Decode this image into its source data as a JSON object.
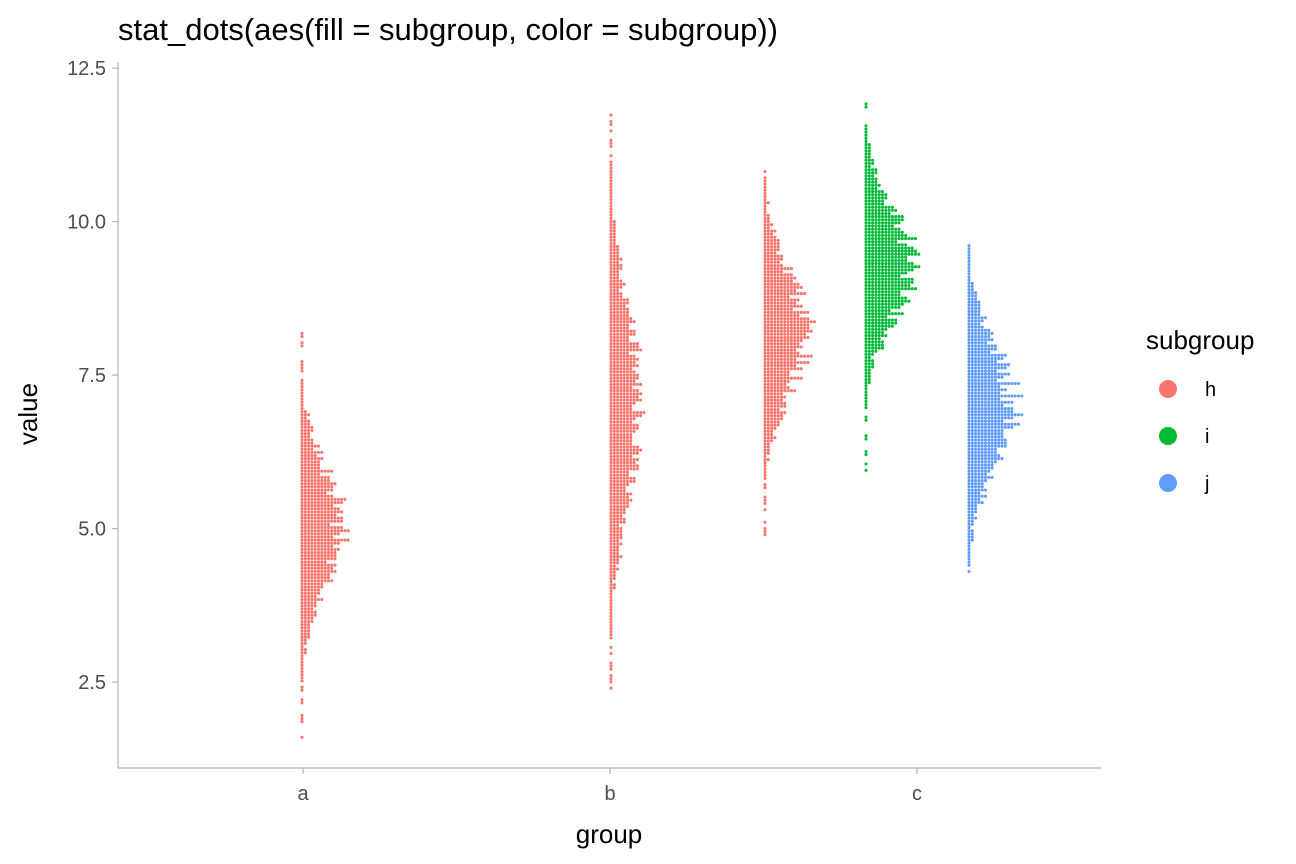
{
  "chart_data": {
    "type": "dotplot",
    "title": "stat_dots(aes(fill = subgroup, color = subgroup))",
    "xlabel": "group",
    "ylabel": "value",
    "ylim": [
      1.1,
      12.6
    ],
    "y_ticks": [
      "2.5",
      "5.0",
      "7.5",
      "10.0",
      "12.5"
    ],
    "y_tick_values": [
      2.5,
      5.0,
      7.5,
      10.0,
      12.5
    ],
    "categories": [
      "a",
      "b",
      "c"
    ],
    "grid": false,
    "legend": {
      "title": "subgroup",
      "position": "right",
      "entries": [
        {
          "label": "h",
          "color": "#F8766D"
        },
        {
          "label": "i",
          "color": "#00BA38"
        },
        {
          "label": "j",
          "color": "#619CFF"
        }
      ]
    },
    "series": [
      {
        "group": "a",
        "subgroup": "h",
        "color": "#F8766D",
        "center": 5.0,
        "sd": 1.0,
        "min": 1.6,
        "max": 8.2,
        "peak_dots": 12
      },
      {
        "group": "b",
        "subgroup": "h",
        "color": "#F8766D",
        "center": 7.0,
        "sd": 1.6,
        "min": 2.3,
        "max": 11.75,
        "peak_dots": 9
      },
      {
        "group": "c",
        "subgroup": "h",
        "color": "#F8766D",
        "center": 8.2,
        "sd": 1.0,
        "min": 4.9,
        "max": 11.0,
        "peak_dots": 13
      },
      {
        "group": "c",
        "subgroup": "i",
        "color": "#00BA38",
        "center": 9.3,
        "sd": 0.9,
        "min": 5.95,
        "max": 12.1,
        "peak_dots": 14
      },
      {
        "group": "c",
        "subgroup": "j",
        "color": "#619CFF",
        "center": 7.0,
        "sd": 1.0,
        "min": 4.15,
        "max": 9.7,
        "peak_dots": 14
      }
    ]
  }
}
